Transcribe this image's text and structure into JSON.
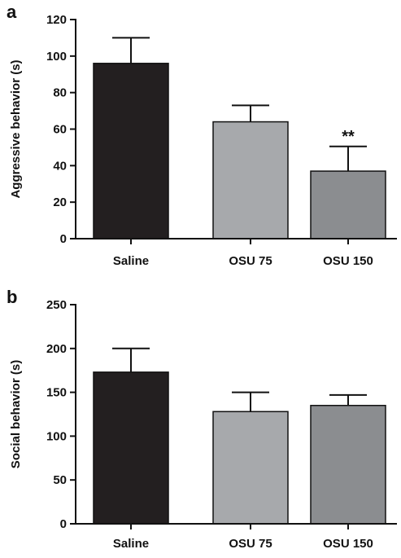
{
  "chart_data": [
    {
      "panel": "a",
      "type": "bar",
      "categories": [
        "Saline",
        "OSU 75",
        "OSU 150"
      ],
      "values": [
        96,
        64,
        37
      ],
      "errors": [
        14,
        9,
        13.5
      ],
      "colors": [
        "#231f20",
        "#a7a9ac",
        "#8b8d90"
      ],
      "ylabel": "Aggressive behavior (s)",
      "ylim": [
        0,
        120
      ],
      "yticks": [
        0,
        20,
        40,
        60,
        80,
        100,
        120
      ],
      "annotations": [
        "",
        "",
        "**"
      ],
      "grid": false,
      "legend": "none"
    },
    {
      "panel": "b",
      "type": "bar",
      "categories": [
        "Saline",
        "OSU 75",
        "OSU 150"
      ],
      "values": [
        173,
        128,
        135
      ],
      "errors": [
        27,
        22,
        12
      ],
      "colors": [
        "#231f20",
        "#a7a9ac",
        "#8b8d90"
      ],
      "ylabel": "Social behavior (s)",
      "ylim": [
        0,
        250
      ],
      "yticks": [
        0,
        50,
        100,
        150,
        200,
        250
      ],
      "annotations": [
        "",
        "",
        ""
      ],
      "grid": false,
      "legend": "none"
    }
  ]
}
